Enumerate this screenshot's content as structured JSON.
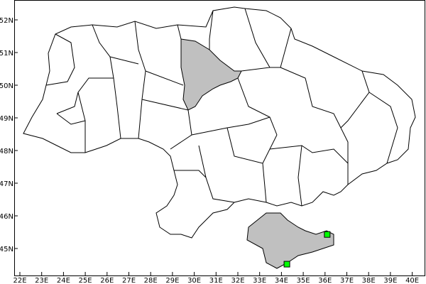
{
  "map": {
    "region": "Ukraine administrative regions",
    "colors": {
      "background": "#ffffff",
      "border": "#000000",
      "highlight": "#c0c0c0",
      "marker": "#00ff00"
    },
    "highlighted_regions": [
      "Kyiv Oblast",
      "Crimea"
    ],
    "lon_range": [
      22,
      40
    ],
    "lat_range": [
      45,
      52
    ],
    "x_ticks": [
      "22E",
      "23E",
      "24E",
      "25E",
      "26E",
      "27E",
      "28E",
      "29E",
      "30E",
      "31E",
      "32E",
      "33E",
      "34E",
      "35E",
      "36E",
      "37E",
      "38E",
      "39E",
      "40E"
    ],
    "y_ticks": [
      "52N",
      "51N",
      "50N",
      "49N",
      "48N",
      "47N",
      "46N",
      "45N"
    ],
    "markers": [
      {
        "lon": 36.1,
        "lat": 45.43
      },
      {
        "lon": 34.25,
        "lat": 44.52
      }
    ]
  }
}
